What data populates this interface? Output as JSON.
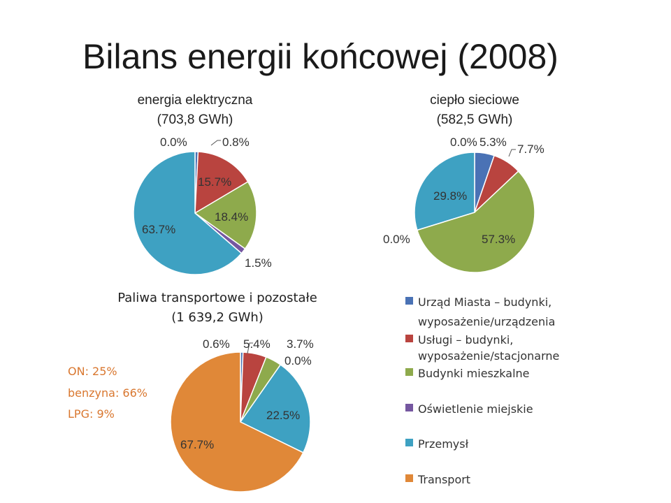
{
  "slide_title": "Bilans energii końcowej (2008)",
  "legend": [
    {
      "label": "Urząd Miasta – budynki, wyposażenie/urządzenia",
      "color": "#4a72b5"
    },
    {
      "label": "Usługi – budynki, wyposażenie/stacjonarne",
      "color": "#b9443f"
    },
    {
      "label": "Budynki mieszkalne",
      "color": "#8eaa4c"
    },
    {
      "label": "Oświetlenie miejskie",
      "color": "#7557a0"
    },
    {
      "label": "Przemysł",
      "color": "#3ea1c2"
    },
    {
      "label": "Transport",
      "color": "#e08838"
    }
  ],
  "fuel_shares": [
    "ON: 25%",
    "benzyna: 66%",
    "LPG: 9%"
  ],
  "chart_data": [
    {
      "type": "pie",
      "title": "energia elektryczna (703,8 GWh)",
      "title_lines": [
        "energia elektryczna",
        "(703,8 GWh)"
      ],
      "categories": [
        "Urząd Miasta – budynki, wyposażenie/urządzenia",
        "Usługi – budynki, wyposażenie/stacjonarne",
        "Budynki mieszkalne",
        "Oświetlenie miejskie",
        "Przemysł",
        "Transport"
      ],
      "values": [
        0.8,
        15.7,
        18.4,
        1.5,
        63.7,
        0.0
      ],
      "data_labels": [
        "0.8%",
        "15.7%",
        "18.4%",
        "1.5%",
        "63.7%",
        "0.0%"
      ],
      "legend": "shared, right-bottom"
    },
    {
      "type": "pie",
      "title": "ciepło sieciowe (582,5 GWh)",
      "title_lines": [
        "ciepło sieciowe",
        "(582,5 GWh)"
      ],
      "categories": [
        "Urząd Miasta – budynki, wyposażenie/urządzenia",
        "Usługi – budynki, wyposażenie/stacjonarne",
        "Budynki mieszkalne",
        "Oświetlenie miejskie",
        "Przemysł",
        "Transport"
      ],
      "values": [
        5.3,
        7.7,
        57.3,
        0.0,
        29.8,
        0.0
      ],
      "data_labels": [
        "5.3%",
        "7.7%",
        "57.3%",
        "0.0%",
        "29.8%",
        "0.0%"
      ],
      "legend": "shared, right-bottom"
    },
    {
      "type": "pie",
      "title": "Paliwa transportowe i pozostałe (1 639,2 GWh)",
      "title_lines": [
        "Paliwa transportowe i pozostałe",
        "(1 639,2 GWh)"
      ],
      "categories": [
        "Urząd Miasta – budynki, wyposażenie/urządzenia",
        "Usługi – budynki, wyposażenie/stacjonarne",
        "Budynki mieszkalne",
        "Oświetlenie miejskie",
        "Przemysł",
        "Transport"
      ],
      "values": [
        0.6,
        5.4,
        3.7,
        0.0,
        22.5,
        67.7
      ],
      "data_labels": [
        "0.6%",
        "5.4%",
        "3.7%",
        "0.0%",
        "22.5%",
        "67.7%"
      ],
      "legend": "shared, right-bottom"
    }
  ]
}
